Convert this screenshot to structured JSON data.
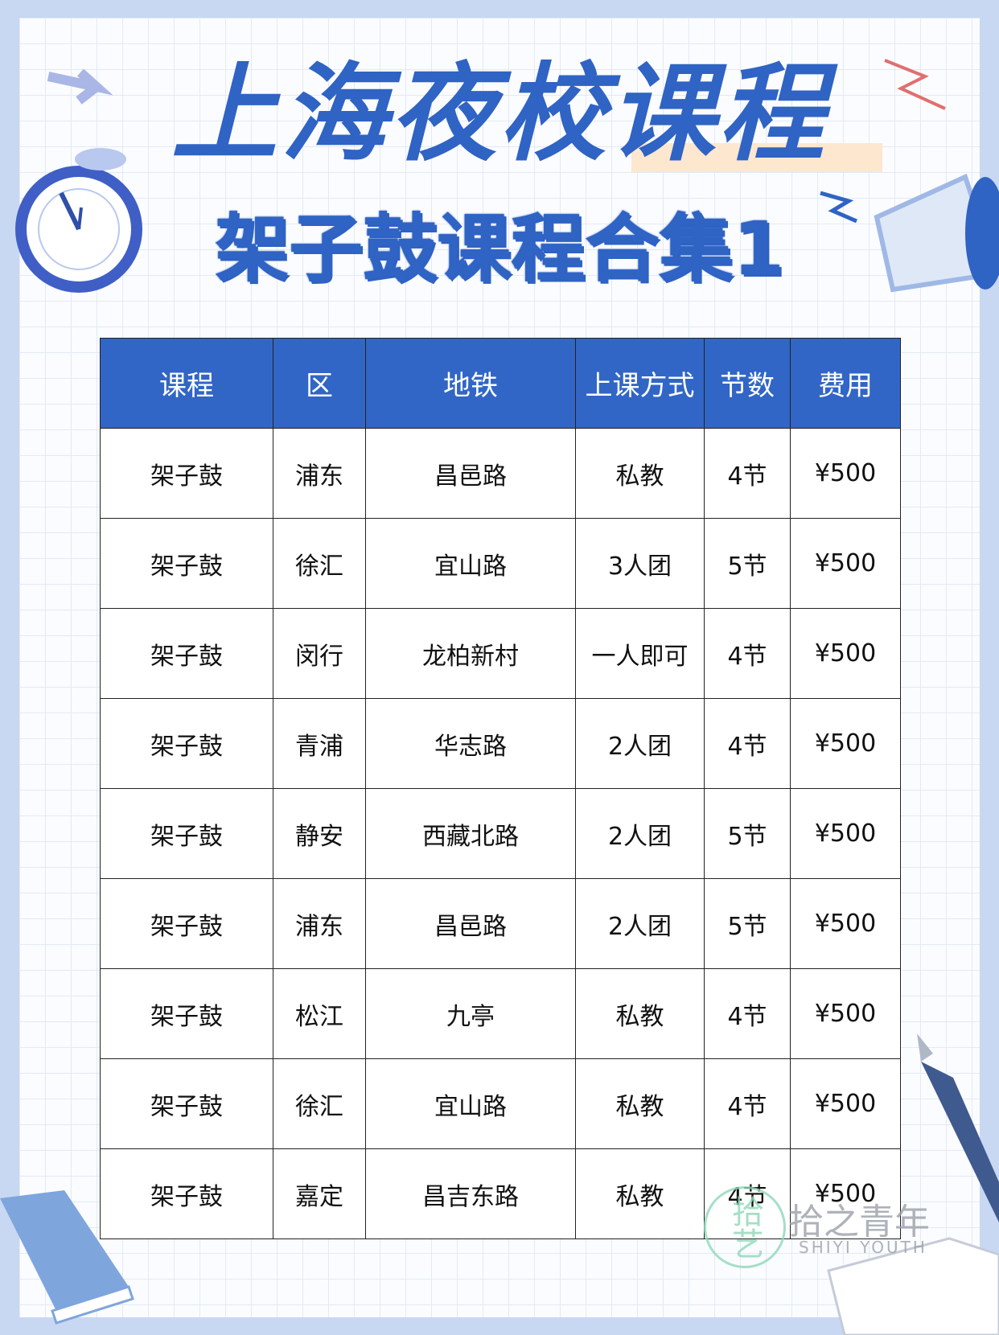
{
  "header": {
    "title": "上海夜校课程",
    "subtitle": "架子鼓课程合集1"
  },
  "table": {
    "header": [
      "课程",
      "区",
      "地铁",
      "上课方式",
      "节数",
      "费用"
    ],
    "rows": [
      [
        "架子鼓",
        "浦东",
        "昌邑路",
        "私教",
        "4节",
        "¥500"
      ],
      [
        "架子鼓",
        "徐汇",
        "宜山路",
        "3人团",
        "5节",
        "¥500"
      ],
      [
        "架子鼓",
        "闵行",
        "龙柏新村",
        "一人即可",
        "4节",
        "¥500"
      ],
      [
        "架子鼓",
        "青浦",
        "华志路",
        "2人团",
        "4节",
        "¥500"
      ],
      [
        "架子鼓",
        "静安",
        "西藏北路",
        "2人团",
        "5节",
        "¥500"
      ],
      [
        "架子鼓",
        "浦东",
        "昌邑路",
        "2人团",
        "5节",
        "¥500"
      ],
      [
        "架子鼓",
        "松江",
        "九亭",
        "私教",
        "4节",
        "¥500"
      ],
      [
        "架子鼓",
        "徐汇",
        "宜山路",
        "私教",
        "4节",
        "¥500"
      ],
      [
        "架子鼓",
        "嘉定",
        "昌吉东路",
        "私教",
        "4节",
        "¥500"
      ]
    ]
  },
  "watermark": {
    "logo": "拾艺",
    "name": "拾之青年",
    "english": "SHIYI YOUTH"
  }
}
